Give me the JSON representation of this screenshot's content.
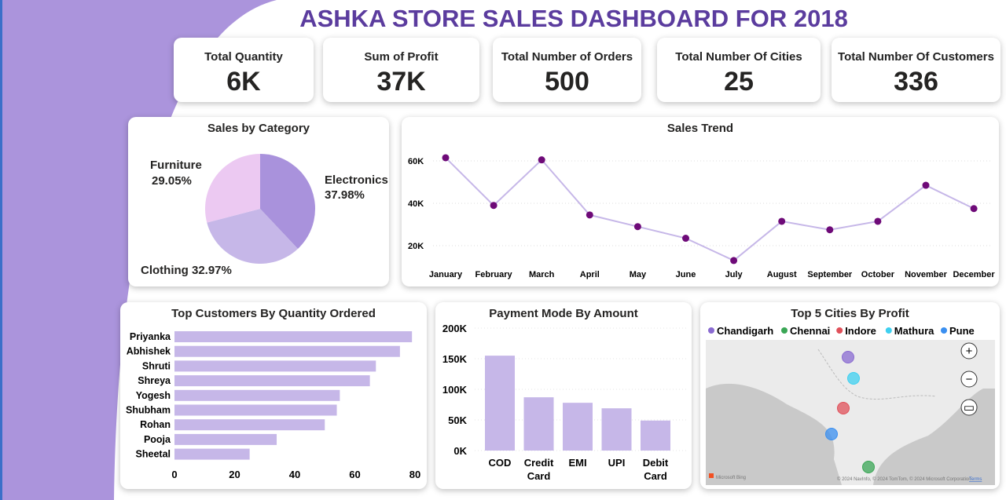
{
  "title": "ASHKA STORE SALES DASHBOARD FOR 2018",
  "colors": {
    "accent": "#ab94dc",
    "title": "#5b3c9e",
    "marker": "#6e0a78",
    "line": "#c6b7e8",
    "bar": "#c6b7e8"
  },
  "kpis": [
    {
      "label": "Total Quantity",
      "value": "6K"
    },
    {
      "label": "Sum of Profit",
      "value": "37K"
    },
    {
      "label": "Total Number of Orders",
      "value": "500"
    },
    {
      "label": "Total Number Of Cities",
      "value": "25"
    },
    {
      "label": "Total Number Of Customers",
      "value": "336"
    }
  ],
  "chart_data": [
    {
      "type": "pie",
      "title": "Sales by Category",
      "categories": [
        "Electronics",
        "Clothing",
        "Furniture"
      ],
      "values": [
        37.98,
        32.97,
        29.05
      ],
      "labels": [
        "37.98%",
        "32.97%",
        "29.05%"
      ],
      "colors": [
        "#a992dc",
        "#c6b7e8",
        "#ecc9f2"
      ]
    },
    {
      "type": "line",
      "title": "Sales Trend",
      "categories": [
        "January",
        "February",
        "March",
        "April",
        "May",
        "June",
        "July",
        "August",
        "September",
        "October",
        "November",
        "December"
      ],
      "values": [
        61500,
        39000,
        60500,
        34500,
        29000,
        23500,
        13000,
        31500,
        27500,
        31500,
        48500,
        37500
      ],
      "yticks": [
        "20K",
        "40K",
        "60K"
      ],
      "ylim": [
        5000,
        70000
      ],
      "grid": true
    },
    {
      "type": "bar",
      "orientation": "horizontal",
      "title": "Top Customers By Quantity Ordered",
      "categories": [
        "Priyanka",
        "Abhishek",
        "Shruti",
        "Shreya",
        "Yogesh",
        "Shubham",
        "Rohan",
        "Pooja",
        "Sheetal"
      ],
      "values": [
        79,
        75,
        67,
        65,
        55,
        54,
        50,
        34,
        25
      ],
      "xticks": [
        "0",
        "20",
        "40",
        "60",
        "80"
      ],
      "xlim": [
        0,
        80
      ]
    },
    {
      "type": "bar",
      "title": "Payment Mode By Amount",
      "categories": [
        [
          "COD"
        ],
        [
          "Credit",
          "Card"
        ],
        [
          "EMI"
        ],
        [
          "UPI"
        ],
        [
          "Debit",
          "Card"
        ]
      ],
      "values": [
        155000,
        87000,
        78000,
        69000,
        49000
      ],
      "yticks": [
        "0K",
        "50K",
        "100K",
        "150K",
        "200K"
      ],
      "ylim": [
        0,
        200000
      ],
      "grid": true
    }
  ],
  "map": {
    "title": "Top 5 Cities By Profit",
    "legend": [
      {
        "name": "Chandigarh",
        "color": "#8a6bd1"
      },
      {
        "name": "Chennai",
        "color": "#3aa655"
      },
      {
        "name": "Indore",
        "color": "#e0505a"
      },
      {
        "name": "Mathura",
        "color": "#3fd0f0"
      },
      {
        "name": "Pune",
        "color": "#3a8ff0"
      }
    ],
    "attribution": "© 2024 NavInfo, © 2024 TomTom, © 2024 Microsoft Corporation",
    "terms": "Terms",
    "brand": "Microsoft Bing"
  }
}
